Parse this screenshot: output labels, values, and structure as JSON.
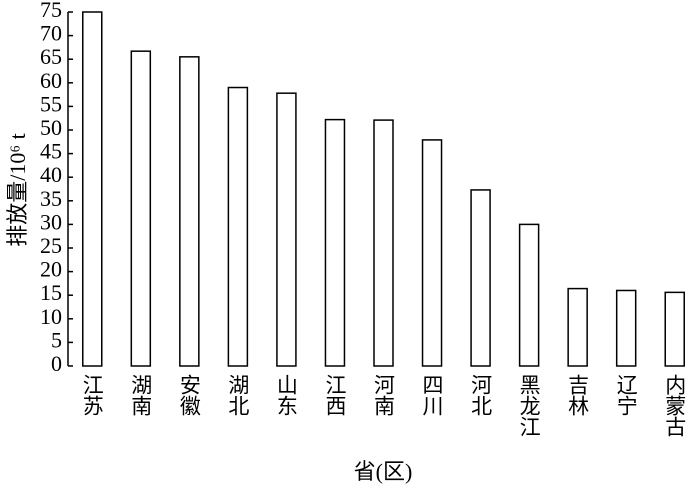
{
  "chart_data": {
    "type": "bar",
    "y_label": "排放量/10⁶ t",
    "x_label": "省(区)",
    "categories": [
      "江苏",
      "湖南",
      "安徽",
      "湖北",
      "山东",
      "江西",
      "河南",
      "四川",
      "河北",
      "黑龙江",
      "吉林",
      "辽宁",
      "内蒙古"
    ],
    "values": [
      75,
      66.7,
      65.5,
      59,
      57.8,
      52.2,
      52.1,
      47.9,
      37.3,
      30,
      16.4,
      16,
      15.6
    ],
    "color": "#ffffff",
    "ylim": [
      0,
      75
    ],
    "yticks": [
      0,
      5,
      10,
      15,
      20,
      25,
      30,
      35,
      40,
      45,
      50,
      55,
      60,
      65,
      70,
      75
    ],
    "grid": false
  }
}
